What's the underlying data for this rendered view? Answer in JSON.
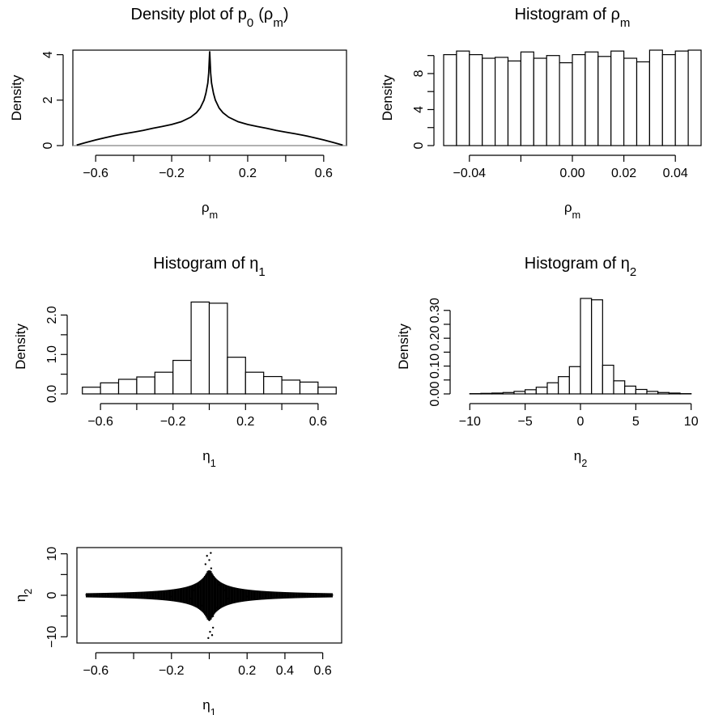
{
  "chart_data": [
    {
      "type": "line",
      "title": "Density plot of p0 (ρm)",
      "title_main": "Density plot of p",
      "title_sub": "0",
      "title_paren_open": "(ρ",
      "title_paren_sub": "m",
      "title_paren_close": ")",
      "xlabel": "ρm",
      "xlabel_main": "ρ",
      "xlabel_sub": "m",
      "ylabel": "Density",
      "xlim": [
        -0.72,
        0.72
      ],
      "ylim": [
        0,
        4.2
      ],
      "xticks": [
        -0.6,
        -0.4,
        -0.2,
        0.0,
        0.2,
        0.4,
        0.6
      ],
      "xtick_labels": [
        "-0.6",
        "",
        "-0.2",
        "",
        "0.2",
        "",
        "0.6"
      ],
      "yticks": [
        0,
        2,
        4
      ],
      "ytick_labels": [
        "0",
        "2",
        "4"
      ],
      "series": [
        {
          "x": [
            -0.7,
            -0.65,
            -0.6,
            -0.55,
            -0.5,
            -0.45,
            -0.4,
            -0.35,
            -0.3,
            -0.25,
            -0.2,
            -0.15,
            -0.1,
            -0.07,
            -0.05,
            -0.03,
            -0.02,
            -0.01,
            -0.005,
            0.0,
            0.005,
            0.01,
            0.02,
            0.03,
            0.05,
            0.07,
            0.1,
            0.15,
            0.2,
            0.25,
            0.3,
            0.35,
            0.4,
            0.45,
            0.5,
            0.55,
            0.6,
            0.65,
            0.7
          ],
          "y": [
            0.02,
            0.14,
            0.25,
            0.35,
            0.44,
            0.52,
            0.59,
            0.67,
            0.76,
            0.84,
            0.93,
            1.05,
            1.25,
            1.45,
            1.65,
            2.0,
            2.3,
            2.75,
            3.2,
            4.15,
            3.2,
            2.75,
            2.3,
            2.0,
            1.65,
            1.45,
            1.25,
            1.05,
            0.93,
            0.84,
            0.76,
            0.67,
            0.59,
            0.52,
            0.44,
            0.35,
            0.25,
            0.14,
            0.02
          ]
        }
      ]
    },
    {
      "type": "bar",
      "title": "Histogram of ρm",
      "title_main": "Histogram of ρ",
      "title_sub": "m",
      "xlabel": "ρm",
      "xlabel_main": "ρ",
      "xlabel_sub": "m",
      "ylabel": "Density",
      "xlim": [
        -0.05,
        0.05
      ],
      "ylim": [
        0,
        10.6
      ],
      "bin_width": 0.005,
      "bin_starts": [
        -0.05,
        -0.045,
        -0.04,
        -0.035,
        -0.03,
        -0.025,
        -0.02,
        -0.015,
        -0.01,
        -0.005,
        0.0,
        0.005,
        0.01,
        0.015,
        0.02,
        0.025,
        0.03,
        0.035,
        0.04,
        0.045
      ],
      "values": [
        10.1,
        10.5,
        10.1,
        9.7,
        9.8,
        9.4,
        10.4,
        9.7,
        10.0,
        9.2,
        10.1,
        10.4,
        9.9,
        10.5,
        9.7,
        9.3,
        10.6,
        10.1,
        10.5,
        10.6
      ],
      "xticks": [
        -0.04,
        -0.02,
        0.0,
        0.02,
        0.04
      ],
      "xtick_labels": [
        "-0.04",
        "",
        "0.00",
        "0.02",
        "0.04"
      ],
      "yticks": [
        0,
        2,
        4,
        6,
        8,
        10
      ],
      "ytick_labels": [
        "0",
        "",
        "4",
        "",
        "8",
        ""
      ]
    },
    {
      "type": "bar",
      "title": "Histogram of η1",
      "title_main": "Histogram of η",
      "title_sub": "1",
      "xlabel": "η1",
      "xlabel_main": "η",
      "xlabel_sub": "1",
      "ylabel": "Density",
      "xlim": [
        -0.73,
        0.73
      ],
      "ylim": [
        0,
        2.4
      ],
      "bin_width": 0.1,
      "bin_starts": [
        -0.7,
        -0.6,
        -0.5,
        -0.4,
        -0.3,
        -0.2,
        -0.1,
        0.0,
        0.1,
        0.2,
        0.3,
        0.4,
        0.5,
        0.6
      ],
      "values": [
        0.17,
        0.28,
        0.37,
        0.43,
        0.55,
        0.85,
        2.33,
        2.3,
        0.93,
        0.55,
        0.44,
        0.35,
        0.3,
        0.17
      ],
      "xticks": [
        -0.6,
        -0.4,
        -0.2,
        0.0,
        0.2,
        0.4,
        0.6
      ],
      "xtick_labels": [
        "-0.6",
        "",
        "-0.2",
        "",
        "0.2",
        "",
        "0.6"
      ],
      "yticks": [
        0.0,
        0.5,
        1.0,
        1.5,
        2.0
      ],
      "ytick_labels": [
        "0.0",
        "",
        "1.0",
        "",
        "2.0"
      ]
    },
    {
      "type": "bar",
      "title": "Histogram of η2",
      "title_main": "Histogram of η",
      "title_sub": "2",
      "xlabel": "η2",
      "xlabel_main": "η",
      "xlabel_sub": "2",
      "ylabel": "Density",
      "xlim": [
        -10.9,
        10.9
      ],
      "ylim": [
        0,
        0.34
      ],
      "bin_width": 1,
      "bin_starts": [
        -10,
        -9,
        -8,
        -7,
        -6,
        -5,
        -4,
        -3,
        -2,
        -1,
        0,
        1,
        2,
        3,
        4,
        5,
        6,
        7,
        8,
        9
      ],
      "values": [
        0.001,
        0.002,
        0.003,
        0.005,
        0.009,
        0.015,
        0.024,
        0.04,
        0.062,
        0.098,
        0.343,
        0.338,
        0.103,
        0.047,
        0.028,
        0.016,
        0.009,
        0.005,
        0.003,
        0.001
      ],
      "xticks": [
        -10,
        -5,
        0,
        5,
        10
      ],
      "xtick_labels": [
        "-10",
        "-5",
        "0",
        "5",
        "10"
      ],
      "yticks": [
        0.0,
        0.05,
        0.1,
        0.15,
        0.2,
        0.25,
        0.3
      ],
      "ytick_labels": [
        "0.00",
        "",
        "0.10",
        "",
        "0.20",
        "",
        "0.30"
      ]
    },
    {
      "type": "scatter",
      "xlabel": "η1",
      "xlabel_main": "η",
      "xlabel_sub": "1",
      "ylabel": "η2",
      "ylabel_main": "η",
      "ylabel_sub": "2",
      "xlim": [
        -0.7,
        0.7
      ],
      "ylim": [
        -11.5,
        11.5
      ],
      "xticks": [
        -0.6,
        -0.4,
        -0.2,
        0.0,
        0.2,
        0.4,
        0.6
      ],
      "xtick_labels": [
        "-0.6",
        "",
        "-0.2",
        "",
        "0.2",
        "0.4",
        "0.6"
      ],
      "yticks": [
        -10,
        -5,
        0,
        5,
        10
      ],
      "ytick_labels": [
        "-10",
        "",
        "0",
        "",
        "10"
      ],
      "points_x": [
        -0.65,
        -0.6,
        -0.5,
        -0.4,
        -0.3,
        -0.2,
        -0.15,
        -0.1,
        -0.08,
        -0.06,
        -0.05,
        -0.04,
        -0.03,
        -0.02,
        -0.01,
        0.0,
        0.01,
        0.02,
        0.03,
        0.04,
        0.05,
        0.06,
        0.08,
        0.1,
        0.15,
        0.2,
        0.3,
        0.4,
        0.5,
        0.6,
        0.65,
        -0.012,
        0.008,
        -0.005,
        0.015,
        -0.02,
        0.02,
        0.0,
        0.004
      ],
      "points_y": [
        0.1,
        -0.1,
        0.15,
        -0.2,
        0.25,
        -0.3,
        0.5,
        -0.8,
        1.2,
        -1.5,
        2.0,
        -2.5,
        3.0,
        -4.0,
        5.0,
        -6.0,
        6.5,
        -5.0,
        4.0,
        -3.0,
        2.5,
        -1.8,
        1.2,
        -0.8,
        0.5,
        -0.3,
        0.2,
        -0.15,
        0.1,
        -0.1,
        0.05,
        9.5,
        10.2,
        -10.3,
        -9.6,
        7.5,
        -7.8,
        8.5,
        -8.8
      ]
    }
  ]
}
